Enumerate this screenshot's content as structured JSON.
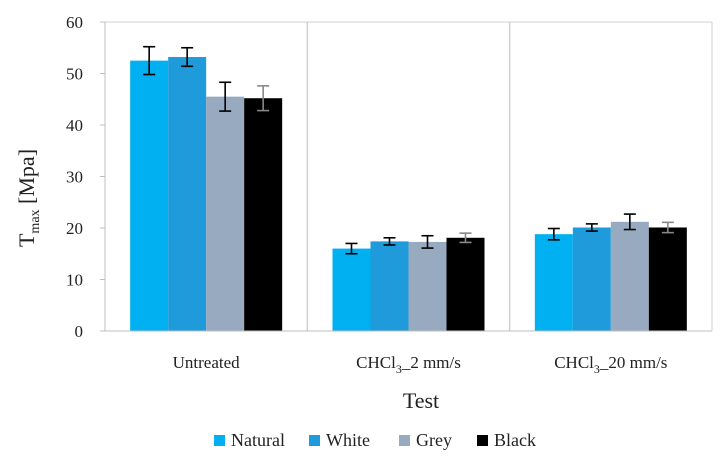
{
  "chart_data": {
    "type": "bar",
    "categories": [
      "Untreated",
      "CHCl3_2 mm/s",
      "CHCl3_20 mm/s"
    ],
    "category_parts": [
      {
        "before": "Untreated",
        "sub": "",
        "after": ""
      },
      {
        "before": "CHCl",
        "sub": "3",
        "after": "_2 mm/s"
      },
      {
        "before": "CHCl",
        "sub": "3",
        "after": "_20 mm/s"
      }
    ],
    "series": [
      {
        "name": "Natural",
        "color": "#00B0F0",
        "values": [
          52.5,
          16.0,
          18.8
        ],
        "errors": [
          2.7,
          1.0,
          1.1
        ]
      },
      {
        "name": "White",
        "color": "#1F9BDC",
        "values": [
          53.2,
          17.4,
          20.1
        ],
        "errors": [
          1.8,
          0.7,
          0.7
        ]
      },
      {
        "name": "Grey",
        "color": "#97AAC0",
        "values": [
          45.5,
          17.3,
          21.2
        ],
        "errors": [
          2.8,
          1.2,
          1.5
        ]
      },
      {
        "name": "Black",
        "color": "#000000",
        "values": [
          45.2,
          18.1,
          20.1
        ],
        "errors": [
          2.4,
          0.9,
          1.0
        ]
      }
    ],
    "xlabel": "Test",
    "ylabel_main": "T",
    "ylabel_sub": "max",
    "ylabel_rest": " [Mpa]",
    "ylim": [
      0,
      60
    ],
    "yticks": [
      "0",
      "10",
      "20",
      "30",
      "40",
      "50",
      "60"
    ],
    "grid": "vertical category separators",
    "legend_position": "bottom"
  }
}
